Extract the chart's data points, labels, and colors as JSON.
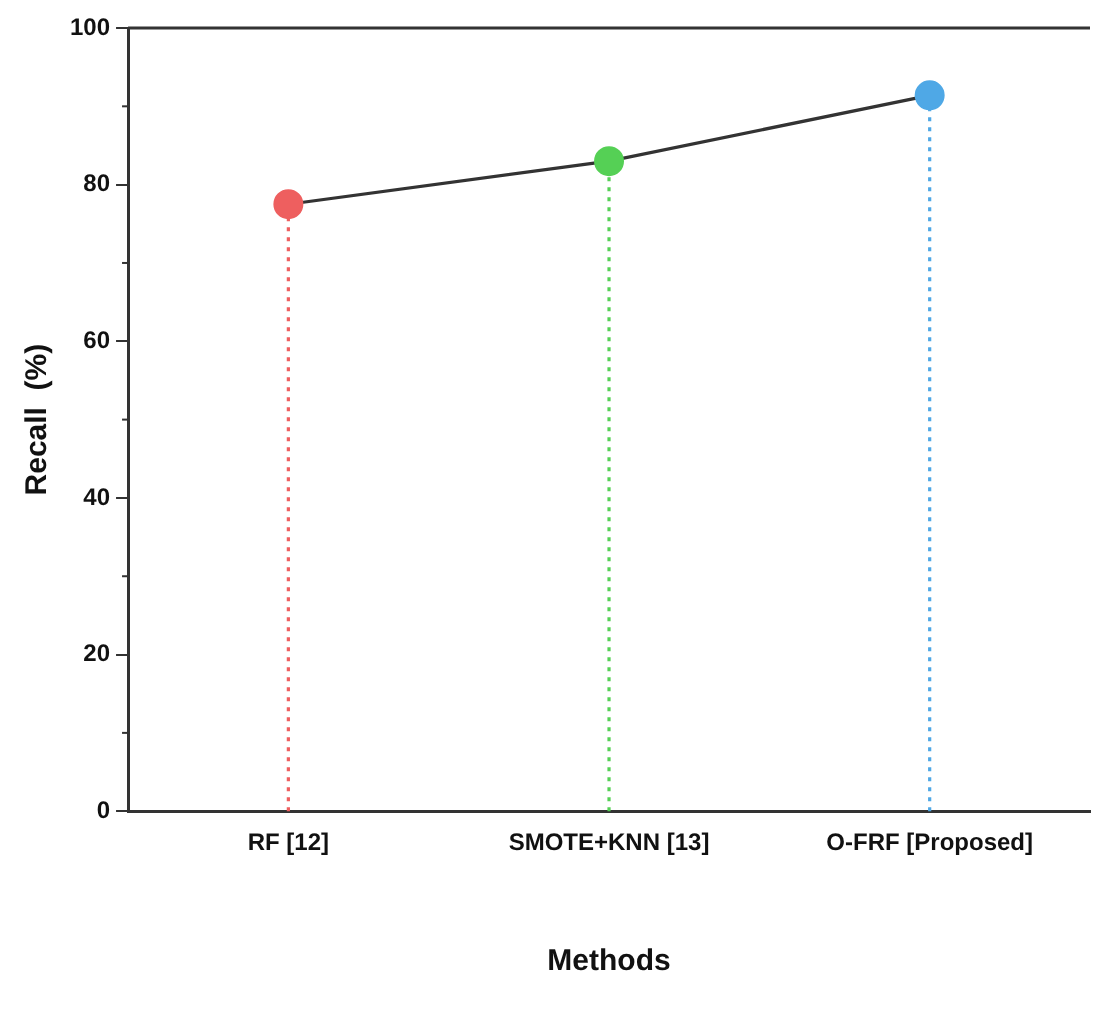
{
  "chart_data": {
    "type": "lollipop",
    "xlabel": "Methods",
    "ylabel": "Recall  (%)",
    "categories": [
      "RF [12]",
      "SMOTE+KNN [13]",
      "O-FRF [Proposed]"
    ],
    "series": [
      {
        "colors": [
          "#ee5f5f",
          "#55d055",
          "#4fa8e6"
        ],
        "values": [
          77.5,
          83.0,
          91.4
        ],
        "line_style": "dotted",
        "marker": "circle"
      },
      {
        "type": "line",
        "color": "#333333",
        "values": [
          77.5,
          83.0,
          91.4
        ],
        "line_style": "solid",
        "marker": "none"
      }
    ],
    "ylim": [
      0,
      100
    ],
    "yticks": [
      0,
      20,
      40,
      60,
      80,
      100
    ],
    "grid": false,
    "legend": false
  }
}
